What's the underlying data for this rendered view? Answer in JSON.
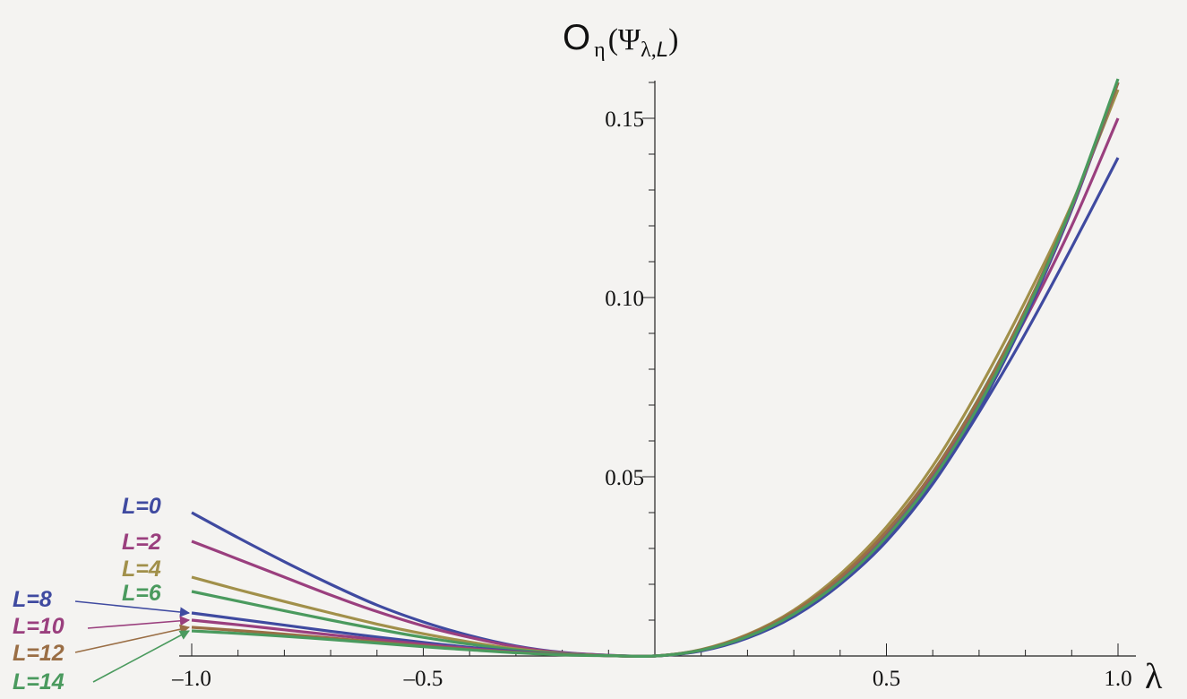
{
  "chart_data": {
    "type": "line",
    "title": "",
    "xlabel": "λ",
    "ylabel": "O_η(Ψ_λ,L)",
    "ylabel_parts": {
      "main": "O",
      "sub1": "η",
      "open": "(Ψ",
      "sub2": "λ,",
      "sub3": "L",
      "close": ")"
    },
    "xlim": [
      -1.0,
      1.0
    ],
    "ylim": [
      0,
      0.16
    ],
    "xticks": [
      -1.0,
      -0.5,
      0.5,
      1.0
    ],
    "xtick_labels": [
      "–1.0",
      "–0.5",
      "0.5",
      "1.0"
    ],
    "yticks": [
      0.05,
      0.1,
      0.15
    ],
    "ytick_labels": [
      "0.05",
      "0.10",
      "0.15"
    ],
    "grid": false,
    "x": [
      -1.0,
      -0.9,
      -0.8,
      -0.7,
      -0.6,
      -0.5,
      -0.4,
      -0.3,
      -0.2,
      -0.1,
      0.0,
      0.1,
      0.2,
      0.3,
      0.4,
      0.5,
      0.6,
      0.7,
      0.8,
      0.9,
      1.0
    ],
    "series": [
      {
        "name": "L=0",
        "color": "#3f4aa0",
        "values": [
          0.04,
          0.033,
          0.0263,
          0.02,
          0.0142,
          0.0095,
          0.0057,
          0.0028,
          0.001,
          0.0002,
          0.0,
          0.0014,
          0.005,
          0.011,
          0.02,
          0.032,
          0.048,
          0.068,
          0.09,
          0.114,
          0.139
        ]
      },
      {
        "name": "L=2",
        "color": "#9a3f7e",
        "values": [
          0.032,
          0.027,
          0.022,
          0.017,
          0.0124,
          0.0084,
          0.0052,
          0.0026,
          0.0009,
          0.0002,
          0.0,
          0.0016,
          0.0055,
          0.012,
          0.0215,
          0.034,
          0.0505,
          0.071,
          0.094,
          0.12,
          0.15
        ]
      },
      {
        "name": "L=4",
        "color": "#a1904a",
        "values": [
          0.022,
          0.0185,
          0.0152,
          0.012,
          0.0089,
          0.0062,
          0.0039,
          0.002,
          0.0007,
          0.0001,
          0.0,
          0.0018,
          0.006,
          0.0128,
          0.0228,
          0.036,
          0.053,
          0.0745,
          0.099,
          0.126,
          0.158
        ]
      },
      {
        "name": "L=6",
        "color": "#4a9a5e",
        "values": [
          0.018,
          0.0153,
          0.0126,
          0.01,
          0.0075,
          0.0052,
          0.0033,
          0.0017,
          0.0006,
          0.0001,
          0.0,
          0.0017,
          0.0057,
          0.0122,
          0.0218,
          0.0345,
          0.0512,
          0.072,
          0.0965,
          0.125,
          0.16
        ]
      },
      {
        "name": "L=8",
        "color": "#3f4aa0",
        "values": [
          0.012,
          0.0103,
          0.0086,
          0.0069,
          0.0053,
          0.0038,
          0.0024,
          0.0013,
          0.0005,
          0.0001,
          0.0,
          0.0015,
          0.0052,
          0.0112,
          0.02,
          0.0322,
          0.0482,
          0.069,
          0.0945,
          0.1245,
          0.16
        ]
      },
      {
        "name": "L=10",
        "color": "#9a3f7e",
        "values": [
          0.01,
          0.0087,
          0.0073,
          0.0059,
          0.0046,
          0.0033,
          0.0021,
          0.0011,
          0.0004,
          0.0001,
          0.0,
          0.0016,
          0.0055,
          0.0118,
          0.021,
          0.0335,
          0.0498,
          0.0705,
          0.0955,
          0.125,
          0.16
        ]
      },
      {
        "name": "L=12",
        "color": "#9a6e45",
        "values": [
          0.008,
          0.0071,
          0.0061,
          0.005,
          0.0039,
          0.0028,
          0.0018,
          0.001,
          0.0004,
          0.0001,
          0.0,
          0.0017,
          0.0058,
          0.0124,
          0.022,
          0.0348,
          0.0512,
          0.0718,
          0.0965,
          0.1255,
          0.16
        ]
      },
      {
        "name": "L=14",
        "color": "#4a9a5e",
        "values": [
          0.007,
          0.0063,
          0.0055,
          0.0046,
          0.0036,
          0.0026,
          0.0017,
          0.0009,
          0.0003,
          0.0001,
          0.0,
          0.0016,
          0.0054,
          0.0117,
          0.0208,
          0.0332,
          0.0494,
          0.07,
          0.0955,
          0.1255,
          0.161
        ]
      }
    ]
  }
}
